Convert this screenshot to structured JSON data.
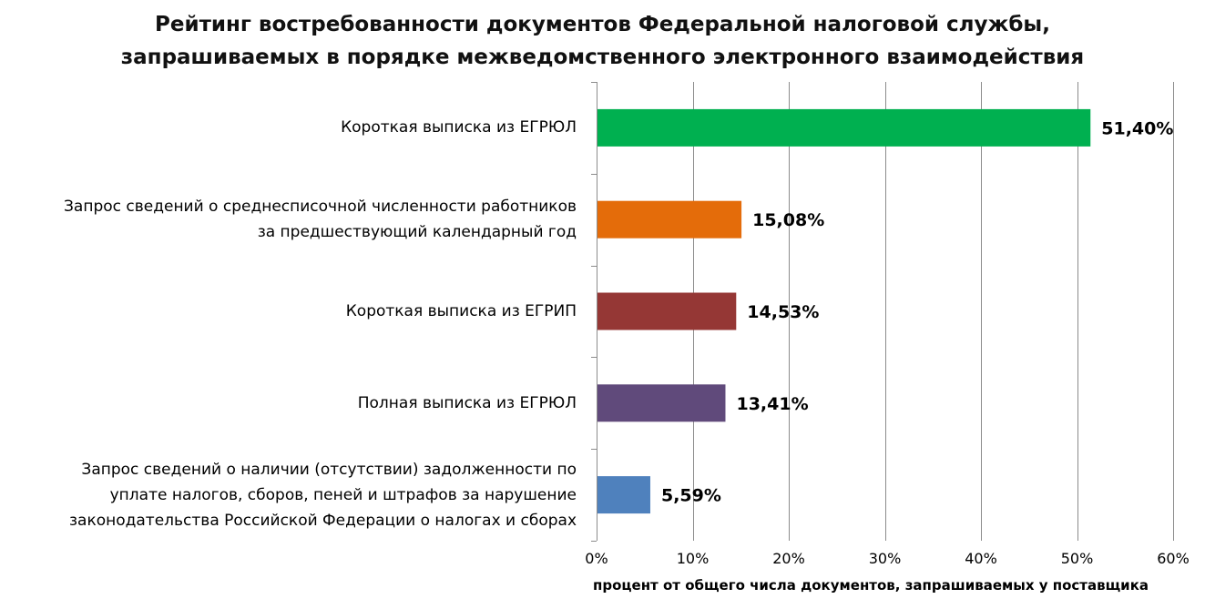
{
  "title_lines": [
    "Рейтинг востребованности документов Федеральной налоговой службы,",
    "запрашиваемых в порядке межведомственного электронного взаимодействия"
  ],
  "chart_data": {
    "type": "bar",
    "orientation": "horizontal",
    "title": "Рейтинг востребованности документов Федеральной налоговой службы, запрашиваемых в порядке межведомственного электронного взаимодействия",
    "categories": [
      [
        "Короткая выписка из ЕГРЮЛ"
      ],
      [
        "Запрос сведений о среднесписочной численности работников",
        "за предшествующий календарный год"
      ],
      [
        "Короткая выписка из ЕГРИП"
      ],
      [
        "Полная выписка из ЕГРЮЛ"
      ],
      [
        "Запрос сведений о наличии (отсутствии) задолженности по",
        "уплате налогов, сборов, пеней и штрафов за нарушение",
        "законодательства Российской Федерации о налогах и сборах"
      ]
    ],
    "values": [
      51.4,
      15.08,
      14.53,
      13.41,
      5.59
    ],
    "value_labels": [
      "51,40%",
      "15,08%",
      "14,53%",
      "13,41%",
      "5,59%"
    ],
    "colors": [
      "#00b050",
      "#e46c0a",
      "#953735",
      "#604a7b",
      "#4f81bd"
    ],
    "xlim": [
      0,
      60
    ],
    "x_ticks": [
      0,
      10,
      20,
      30,
      40,
      50,
      60
    ],
    "x_tick_labels": [
      "0%",
      "10%",
      "20%",
      "30%",
      "40%",
      "50%",
      "60%"
    ],
    "xlabel": "процент от общего числа документов, запрашиваемых у поставщика",
    "grid": true
  }
}
